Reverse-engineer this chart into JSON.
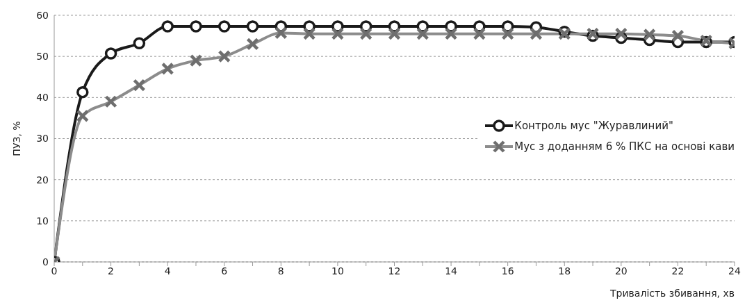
{
  "chart_data": {
    "type": "line",
    "xlabel": "Тривалість збивання, хв",
    "ylabel": "ПУЗ, %",
    "x": [
      0,
      1,
      2,
      3,
      4,
      5,
      6,
      7,
      8,
      9,
      10,
      11,
      12,
      13,
      14,
      15,
      16,
      17,
      18,
      19,
      20,
      21,
      22,
      23,
      24
    ],
    "series": [
      {
        "name": "Контроль мус \"Журавлиний\"",
        "color": "#1a1a1a",
        "marker": "circle",
        "values": [
          0,
          41.3,
          50.7,
          53.2,
          57.3,
          57.3,
          57.3,
          57.3,
          57.3,
          57.3,
          57.3,
          57.3,
          57.3,
          57.3,
          57.3,
          57.3,
          57.3,
          57.1,
          56,
          55,
          54.5,
          54,
          53.5,
          53.5,
          53.5
        ]
      },
      {
        "name": "Мус з доданням 6 % ПКС на основі кави",
        "color": "#8c8c8c",
        "marker": "cross",
        "values": [
          0,
          35.5,
          39,
          43,
          47,
          49,
          50,
          53,
          55.7,
          55.5,
          55.5,
          55.5,
          55.5,
          55.5,
          55.5,
          55.5,
          55.5,
          55.5,
          55.5,
          55.5,
          55.5,
          55.3,
          55,
          53.8,
          53.2
        ]
      }
    ],
    "xlim": [
      0,
      24
    ],
    "xticks": [
      0,
      {
        "value": 1,
        "label": null
      },
      2,
      {
        "value": 3,
        "label": null
      },
      4,
      {
        "value": 5,
        "label": null
      },
      6,
      {
        "value": 7,
        "label": null
      },
      8,
      {
        "value": 9,
        "label": null
      },
      10,
      {
        "value": 11,
        "label": null
      },
      12,
      {
        "value": 13,
        "label": null
      },
      14,
      {
        "value": 15,
        "label": null
      },
      16,
      {
        "value": 17,
        "label": null
      },
      18,
      {
        "value": 19,
        "label": null
      },
      20,
      {
        "value": 21,
        "label": null
      },
      22,
      {
        "value": 23,
        "label": null
      },
      24
    ],
    "ylim": [
      0,
      60
    ],
    "yticks": [
      0,
      10,
      20,
      30,
      40,
      50,
      60
    ],
    "grid": "y",
    "legend": "right",
    "line_style": "solid"
  }
}
